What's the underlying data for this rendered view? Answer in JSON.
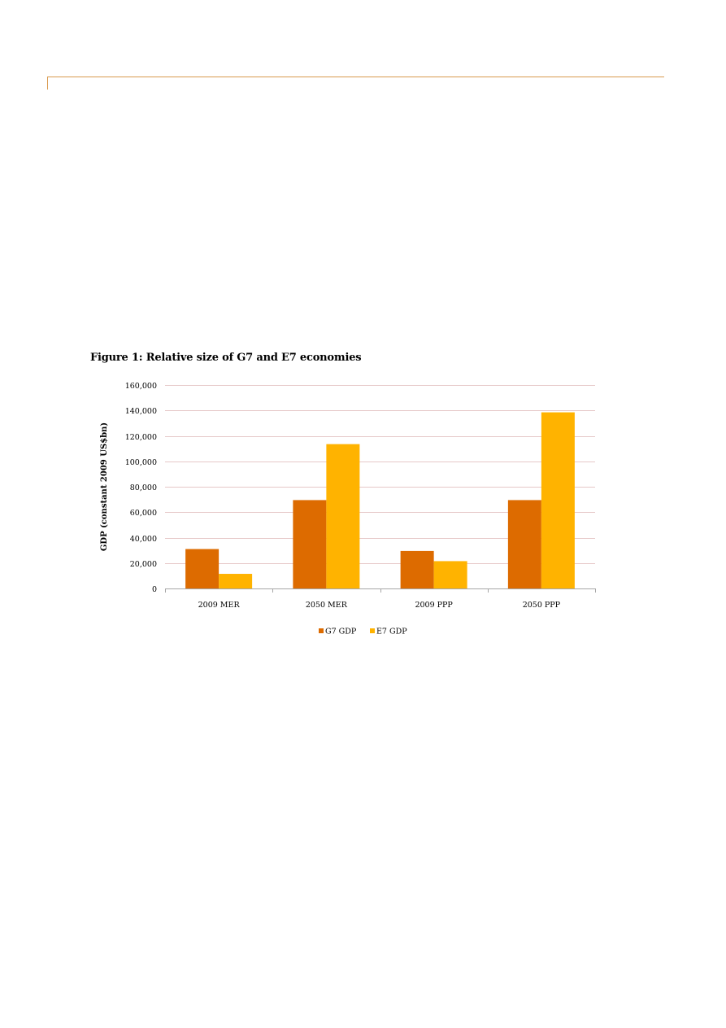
{
  "figure": {
    "title": "Figure 1: Relative size of G7 and E7 economies"
  },
  "colors": {
    "rule": "#d99a4e",
    "gridline": "#e6c8c8",
    "axis": "#a6a6a6"
  },
  "chart_data": {
    "type": "bar",
    "title": "Figure 1: Relative size of G7 and E7 economies",
    "xlabel": "",
    "ylabel": "GDP (constant 2009 US$bn)",
    "categories": [
      "2009 MER",
      "2050 MER",
      "2009 PPP",
      "2050 PPP"
    ],
    "series": [
      {
        "name": "G7 GDP",
        "color": "#dd6b00",
        "values": [
          31000,
          69500,
          29500,
          69500
        ]
      },
      {
        "name": "E7 GDP",
        "color": "#ffb300",
        "values": [
          11500,
          113500,
          21500,
          138500
        ]
      }
    ],
    "ylim": [
      0,
      160000
    ],
    "yticks": [
      0,
      20000,
      40000,
      60000,
      80000,
      100000,
      120000,
      140000,
      160000
    ],
    "ytick_labels": [
      "0",
      "20,000",
      "40,000",
      "60,000",
      "80,000",
      "100,000",
      "120,000",
      "140,000",
      "160,000"
    ],
    "grid": true,
    "legend": "bottom"
  }
}
